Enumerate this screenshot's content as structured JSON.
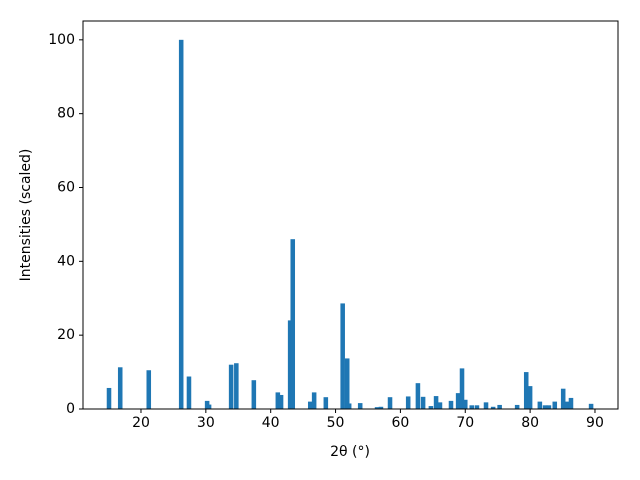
{
  "chart_data": {
    "type": "bar",
    "x_label": "2θ (°)",
    "y_label": "Intensities (scaled)",
    "color": "#1f77b4",
    "x": [
      15.07,
      16.8,
      21.2,
      26.2,
      27.4,
      30.2,
      30.5,
      33.9,
      34.7,
      37.4,
      41.1,
      41.6,
      43.0,
      43.4,
      46.1,
      46.7,
      48.5,
      51.1,
      51.8,
      52.1,
      53.8,
      56.4,
      57.0,
      58.4,
      61.2,
      62.7,
      63.5,
      64.7,
      65.5,
      66.1,
      67.8,
      68.9,
      69.5,
      70.0,
      71.0,
      71.8,
      73.2,
      74.3,
      75.3,
      78.0,
      79.4,
      80.0,
      81.5,
      82.3,
      82.9,
      83.8,
      85.1,
      85.7,
      86.3,
      89.4
    ],
    "values": [
      5.7,
      11.3,
      10.5,
      100,
      8.8,
      2.2,
      1.2,
      12,
      12.4,
      7.8,
      4.5,
      3.8,
      24,
      46,
      2,
      4.5,
      3.2,
      28.6,
      13.7,
      1.5,
      1.6,
      0.5,
      0.6,
      3.2,
      3.4,
      7,
      3.3,
      0.8,
      3.5,
      1.8,
      2.2,
      4.3,
      11,
      2.5,
      1,
      1,
      1.8,
      0.6,
      1.1,
      1.1,
      10,
      6.2,
      2,
      1,
      1,
      2,
      5.5,
      2,
      3,
      1.4
    ],
    "xlim": [
      11.06,
      93.55
    ],
    "ylim": [
      0,
      105.1
    ],
    "xticks": [
      20,
      30,
      40,
      50,
      60,
      70,
      80,
      90
    ],
    "yticks": [
      0,
      20,
      40,
      60,
      80,
      100
    ]
  }
}
